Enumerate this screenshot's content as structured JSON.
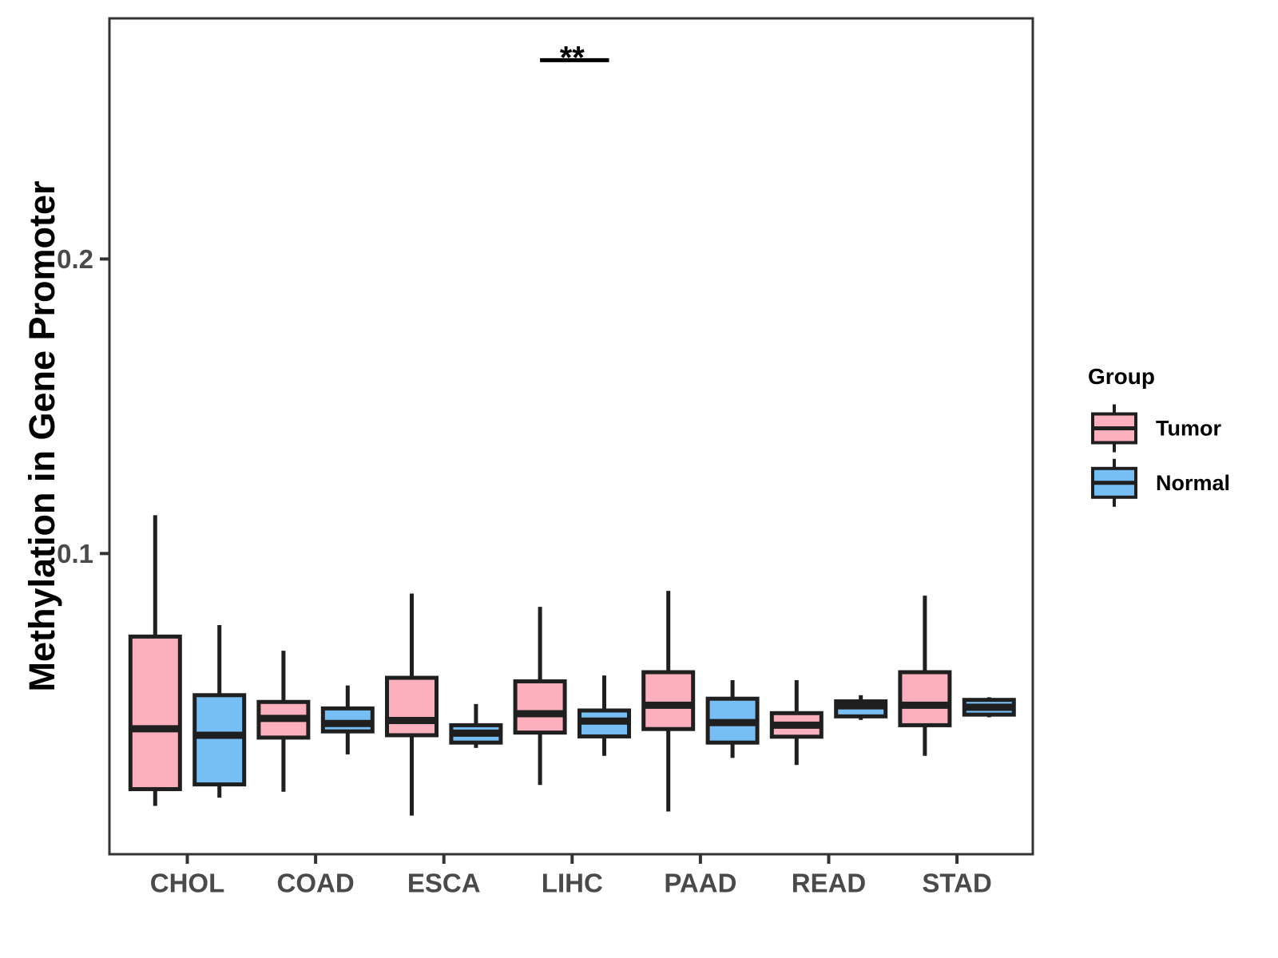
{
  "figure": {
    "background": "#FFFFFF"
  },
  "chart_data": {
    "type": "boxplot",
    "title": "",
    "xlabel": "",
    "ylabel": "Methylation in Gene Promoter",
    "categories": [
      "CHOL",
      "COAD",
      "ESCA",
      "LIHC",
      "PAAD",
      "READ",
      "STAD"
    ],
    "ylim": [
      0,
      0.28
    ],
    "yticks": [
      {
        "value": 0.1,
        "label": "0.1"
      },
      {
        "value": 0.2,
        "label": "0.2"
      }
    ],
    "grid": false,
    "legend": {
      "title": "Group",
      "position": "right",
      "entries": [
        {
          "name": "Tumor",
          "color": "#FCB0BE"
        },
        {
          "name": "Normal",
          "color": "#76BEF3"
        }
      ]
    },
    "series": [
      {
        "name": "Tumor",
        "color": "#FCB0BE",
        "boxes": [
          {
            "category": "CHOL",
            "min": 0.0143,
            "q1": 0.02,
            "median": 0.0405,
            "q3": 0.0718,
            "max": 0.113
          },
          {
            "category": "COAD",
            "min": 0.0191,
            "q1": 0.0375,
            "median": 0.044,
            "q3": 0.0496,
            "max": 0.067
          },
          {
            "category": "ESCA",
            "min": 0.011,
            "q1": 0.0383,
            "median": 0.0433,
            "q3": 0.0578,
            "max": 0.0864
          },
          {
            "category": "LIHC",
            "min": 0.0214,
            "q1": 0.0392,
            "median": 0.0456,
            "q3": 0.0566,
            "max": 0.0819
          },
          {
            "category": "PAAD",
            "min": 0.0124,
            "q1": 0.0404,
            "median": 0.0485,
            "q3": 0.0597,
            "max": 0.0873
          },
          {
            "category": "READ",
            "min": 0.0282,
            "q1": 0.0378,
            "median": 0.0417,
            "q3": 0.0458,
            "max": 0.057
          },
          {
            "category": "STAD",
            "min": 0.0313,
            "q1": 0.0417,
            "median": 0.0485,
            "q3": 0.0597,
            "max": 0.0857
          }
        ]
      },
      {
        "name": "Normal",
        "color": "#76BEF3",
        "boxes": [
          {
            "category": "CHOL",
            "min": 0.0171,
            "q1": 0.0216,
            "median": 0.0383,
            "q3": 0.0519,
            "max": 0.0757
          },
          {
            "category": "COAD",
            "min": 0.0318,
            "q1": 0.0396,
            "median": 0.0423,
            "q3": 0.0474,
            "max": 0.0552
          },
          {
            "category": "ESCA",
            "min": 0.034,
            "q1": 0.0358,
            "median": 0.039,
            "q3": 0.0417,
            "max": 0.0489
          },
          {
            "category": "LIHC",
            "min": 0.0313,
            "q1": 0.0379,
            "median": 0.0431,
            "q3": 0.0467,
            "max": 0.0586
          },
          {
            "category": "PAAD",
            "min": 0.0306,
            "q1": 0.0358,
            "median": 0.0426,
            "q3": 0.0507,
            "max": 0.057
          },
          {
            "category": "READ",
            "min": 0.0435,
            "q1": 0.0447,
            "median": 0.0483,
            "q3": 0.0498,
            "max": 0.0519
          },
          {
            "category": "STAD",
            "min": 0.0444,
            "q1": 0.0453,
            "median": 0.0478,
            "q3": 0.0503,
            "max": 0.0512
          }
        ]
      }
    ],
    "annotations": [
      {
        "type": "significance",
        "label": "**",
        "category": "LIHC",
        "between": [
          "Tumor",
          "Normal"
        ],
        "y": 0.2675
      }
    ],
    "style": {
      "box_border": "#1F1F1F",
      "median_color": "#1F1F1F",
      "whisker_color": "#1F1F1F",
      "axis_text_color": "#4A4A4A",
      "axis_title_color": "#000000",
      "panel_border_color": "#333333",
      "annotation_color": "#000000"
    }
  }
}
